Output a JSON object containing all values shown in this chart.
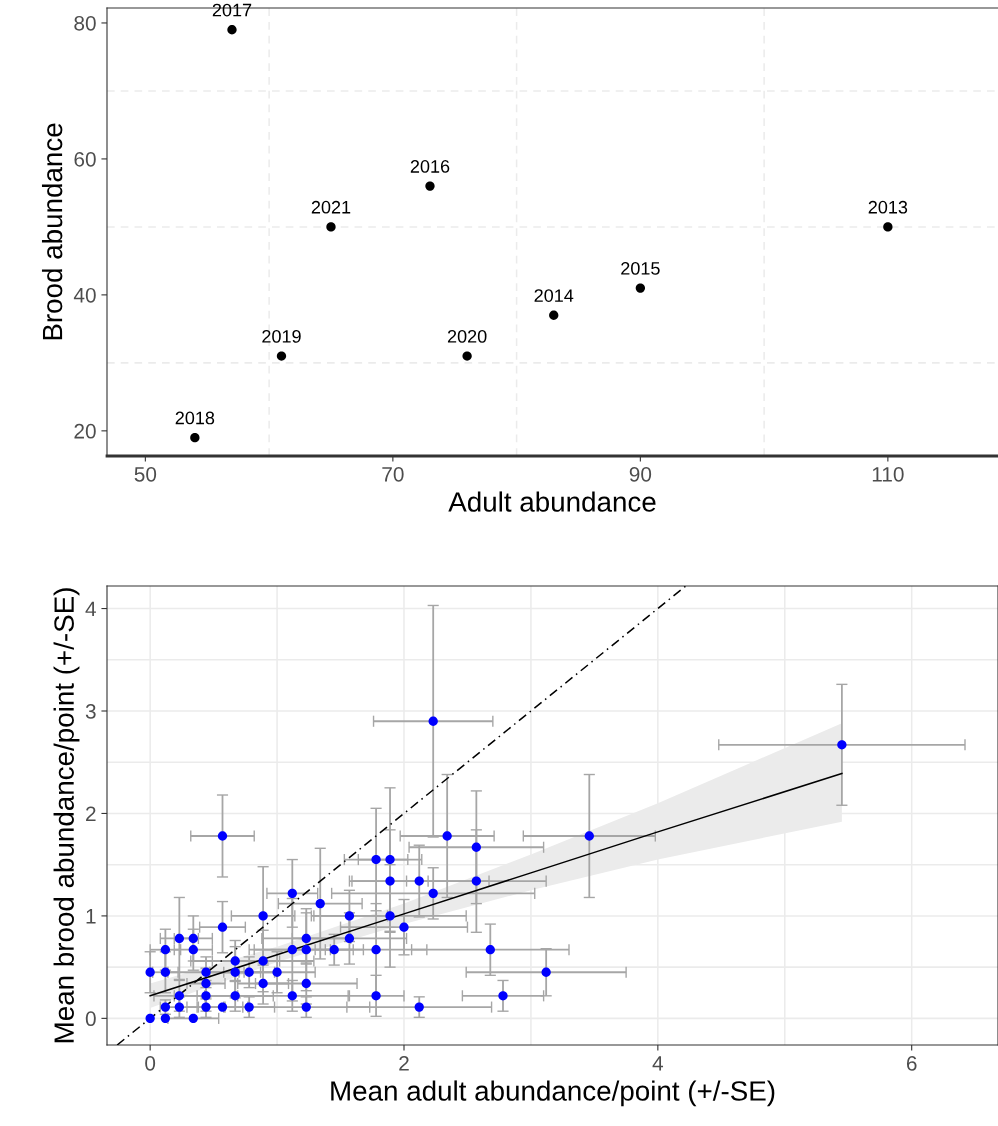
{
  "chart_data": [
    {
      "type": "scatter",
      "xlabel": "Adult abundance",
      "ylabel": "Brood abundance",
      "xlim": [
        46.9,
        118.9
      ],
      "ylim": [
        16.3,
        82.2
      ],
      "xticks": [
        50,
        {
          "value": 60,
          "label": null
        },
        70,
        {
          "value": 80,
          "label": null
        },
        90,
        {
          "value": 100,
          "label": null
        },
        110
      ],
      "yticks": [
        20,
        {
          "value": 30,
          "label": null
        },
        40,
        {
          "value": 50,
          "label": null
        },
        60,
        {
          "value": 70,
          "label": null
        },
        80
      ],
      "grid": true,
      "marker": "circle",
      "series": [
        {
          "color": "#000000",
          "x": [
            110,
            83,
            90,
            73,
            57,
            54,
            61,
            76,
            65
          ],
          "values": [
            50,
            37,
            41,
            56,
            79,
            19,
            31,
            31,
            50
          ]
        }
      ],
      "annotations": [
        {
          "text": "2013",
          "x": 110,
          "y": 50
        },
        {
          "text": "2014",
          "x": 83,
          "y": 37
        },
        {
          "text": "2015",
          "x": 90,
          "y": 41
        },
        {
          "text": "2016",
          "x": 73,
          "y": 56
        },
        {
          "text": "2017",
          "x": 57,
          "y": 79
        },
        {
          "text": "2018",
          "x": 54,
          "y": 19
        },
        {
          "text": "2019",
          "x": 61,
          "y": 31
        },
        {
          "text": "2020",
          "x": 76,
          "y": 31
        },
        {
          "text": "2021",
          "x": 65,
          "y": 50
        }
      ]
    },
    {
      "type": "scatter",
      "xlabel": "Mean adult abundance/point (+/-SE)",
      "ylabel": "Mean brood abundance/point (+/-SE)",
      "xlim": [
        -0.34,
        6.68
      ],
      "ylim": [
        -0.26,
        4.22
      ],
      "xticks": [
        0,
        {
          "value": 1,
          "label": null
        },
        2,
        {
          "value": 3,
          "label": null
        },
        4,
        {
          "value": 5,
          "label": null
        },
        6
      ],
      "yticks": [
        0,
        {
          "value": 0.5,
          "label": null
        },
        1,
        {
          "value": 1.5,
          "label": null
        },
        2,
        {
          "value": 2.5,
          "label": null
        },
        3,
        {
          "value": 3.5,
          "label": null
        },
        4
      ],
      "grid": true,
      "series": [
        {
          "type": "line",
          "line_style": "dashed",
          "color": "#000000",
          "x": [
            -0.26,
            4.22
          ],
          "values": [
            -0.26,
            4.22
          ]
        },
        {
          "type": "line",
          "line_style": "solid",
          "color": "#000000",
          "x": [
            0,
            1,
            2,
            3,
            4,
            5.45
          ],
          "values": [
            0.22,
            0.62,
            1.02,
            1.42,
            1.82,
            2.39
          ],
          "lower": [
            0.1,
            0.55,
            0.92,
            1.25,
            1.55,
            1.92
          ],
          "upper": [
            0.34,
            0.7,
            1.12,
            1.6,
            2.1,
            2.88
          ]
        },
        {
          "type": "scatter",
          "marker": "circle",
          "color": "#0000ff",
          "x": [
            0,
            0.12,
            0.34,
            0.12,
            0.23,
            0.44,
            0.57,
            0.78,
            1.23,
            2.12,
            0.23,
            0.44,
            0.67,
            1.12,
            1.78,
            2.78,
            0.44,
            0.89,
            1.23,
            0,
            0.12,
            0.44,
            0.67,
            0.78,
            1.0,
            3.12,
            0.67,
            0.89,
            0.12,
            0.34,
            1.12,
            1.23,
            1.45,
            1.78,
            2.68,
            0.23,
            0.34,
            1.23,
            1.57,
            0.57,
            2.0,
            0.89,
            1.57,
            1.89,
            1.34,
            1.12,
            2.23,
            1.89,
            2.12,
            2.57,
            1.78,
            1.89,
            2.57,
            0.57,
            2.34,
            2.23,
            3.46,
            5.45
          ],
          "values": [
            0,
            0,
            0,
            0.11,
            0.11,
            0.11,
            0.11,
            0.11,
            0.11,
            0.11,
            0.22,
            0.22,
            0.22,
            0.22,
            0.22,
            0.22,
            0.34,
            0.34,
            0.34,
            0.45,
            0.45,
            0.45,
            0.45,
            0.45,
            0.45,
            0.45,
            0.56,
            0.56,
            0.67,
            0.67,
            0.67,
            0.67,
            0.67,
            0.67,
            0.67,
            0.78,
            0.78,
            0.78,
            0.78,
            0.89,
            0.89,
            1.0,
            1.0,
            1.0,
            1.12,
            1.22,
            1.22,
            1.34,
            1.34,
            1.34,
            1.55,
            1.55,
            1.67,
            1.78,
            1.78,
            2.9,
            1.78,
            2.67
          ],
          "xerrors": [
            null,
            null,
            0.2,
            null,
            0.15,
            0.15,
            0.2,
            0.2,
            0.5,
            0.57,
            0.2,
            0.25,
            0.3,
            0.45,
            0.22,
            0.32,
            0.15,
            0.2,
            0.4,
            null,
            0.1,
            0.3,
            0.2,
            0.2,
            0.3,
            0.63,
            0.35,
            0.4,
            0.12,
            0.15,
            0.3,
            0.45,
            0.15,
            0.4,
            0.62,
            0.15,
            0.15,
            0.35,
            0.45,
            0.18,
            0.5,
            0.25,
            0.3,
            0.6,
            0.33,
            0.2,
            0.8,
            0.3,
            0.55,
            0.55,
            0.25,
            0.25,
            0.53,
            0.25,
            0.37,
            0.47,
            0.52,
            0.97
          ],
          "errors": [
            null,
            null,
            null,
            0.07,
            0.1,
            0.1,
            null,
            0.1,
            0.1,
            0.1,
            0.15,
            0.15,
            0.15,
            0.15,
            0.2,
            0.15,
            0.15,
            0.2,
            0.2,
            0.2,
            0.2,
            0.15,
            0.25,
            0.15,
            0.2,
            0.23,
            0.2,
            0.3,
            0.2,
            0.2,
            0.5,
            0.4,
            0.15,
            0.45,
            0.25,
            0.4,
            0.22,
            0.25,
            0.25,
            0.25,
            0.27,
            0.48,
            0.25,
            0.5,
            0.54,
            0.33,
            0.25,
            0.5,
            0.35,
            0.5,
            0.5,
            0.7,
            0.55,
            0.4,
            0.6,
            1.13,
            0.6,
            0.59
          ]
        }
      ]
    }
  ]
}
